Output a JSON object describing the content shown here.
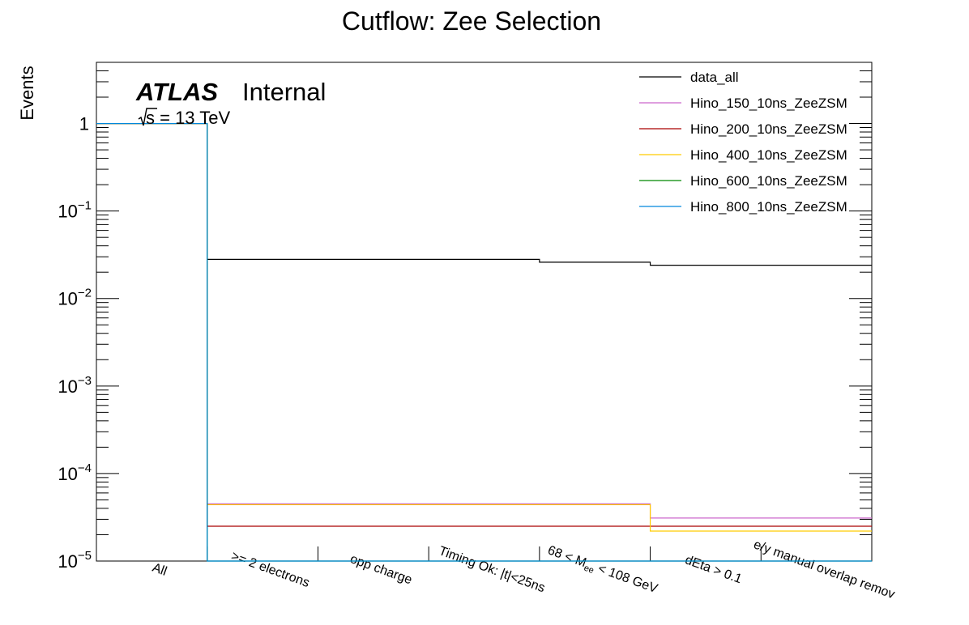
{
  "chart_data": {
    "type": "line",
    "title": "Cutflow: Zee Selection",
    "xlabel": "",
    "ylabel": "Events",
    "yscale": "log",
    "ylim": [
      1e-05,
      5
    ],
    "categories": [
      "All",
      ">= 2 electrons",
      "opp charge",
      "Timing Ok: |t|<25ns",
      "68 < M_ee < 108 GeV",
      "dEta > 0.1",
      "e/y manual overlap remov"
    ],
    "category_display": [
      {
        "main": "All"
      },
      {
        "main": ">= 2 electrons"
      },
      {
        "main": "opp charge"
      },
      {
        "main": "Timing Ok: |t|<25ns"
      },
      {
        "main": "68 < M",
        "sub": "ee",
        "tail": " < 108 GeV"
      },
      {
        "main": "dEta > 0.1"
      },
      {
        "main": "e/y manual overlap remov"
      }
    ],
    "y_ticks": [
      {
        "value": 1,
        "text": "1"
      },
      {
        "value": 0.1,
        "base": "10",
        "exp": "−1"
      },
      {
        "value": 0.01,
        "base": "10",
        "exp": "−2"
      },
      {
        "value": 0.001,
        "base": "10",
        "exp": "−3"
      },
      {
        "value": 0.0001,
        "base": "10",
        "exp": "−4"
      },
      {
        "value": 1e-05,
        "base": "10",
        "exp": "−5"
      }
    ],
    "legend_position": "top-right",
    "series": [
      {
        "name": "data_all",
        "color": "#000000",
        "values": [
          1,
          0.028,
          0.028,
          0.028,
          0.026,
          0.024,
          0.024
        ]
      },
      {
        "name": "Hino_150_10ns_ZeeZSM",
        "color": "#cc66cc",
        "values": [
          1,
          4.5e-05,
          4.5e-05,
          4.5e-05,
          4.5e-05,
          3.1e-05,
          3.1e-05
        ]
      },
      {
        "name": "Hino_200_10ns_ZeeZSM",
        "color": "#aa0000",
        "values": [
          1,
          2.5e-05,
          2.5e-05,
          2.5e-05,
          2.5e-05,
          2.5e-05,
          2.5e-05
        ]
      },
      {
        "name": "Hino_400_10ns_ZeeZSM",
        "color": "#ffcc00",
        "values": [
          1,
          4.4e-05,
          4.4e-05,
          4.4e-05,
          4.4e-05,
          2.2e-05,
          2.2e-05
        ]
      },
      {
        "name": "Hino_600_10ns_ZeeZSM",
        "color": "#008800",
        "values": [
          1,
          1e-05,
          1e-05,
          1e-05,
          1e-05,
          1e-05,
          1e-05
        ]
      },
      {
        "name": "Hino_800_10ns_ZeeZSM",
        "color": "#0088dd",
        "values": [
          1,
          1e-05,
          1e-05,
          1e-05,
          1e-05,
          1e-05,
          1e-05
        ]
      }
    ]
  },
  "labels": {
    "atlas": "ATLAS",
    "internal": "Internal",
    "sqrt_s": "s = 13 TeV"
  }
}
